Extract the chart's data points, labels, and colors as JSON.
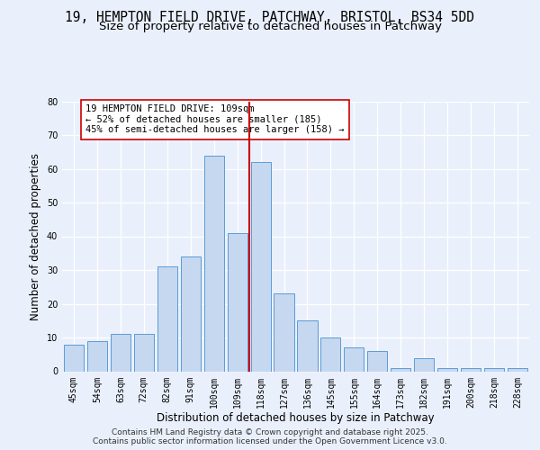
{
  "title_line1": "19, HEMPTON FIELD DRIVE, PATCHWAY, BRISTOL, BS34 5DD",
  "title_line2": "Size of property relative to detached houses in Patchway",
  "xlabel": "Distribution of detached houses by size in Patchway",
  "ylabel": "Number of detached properties",
  "categories": [
    "45sqm",
    "54sqm",
    "63sqm",
    "72sqm",
    "82sqm",
    "91sqm",
    "100sqm",
    "109sqm",
    "118sqm",
    "127sqm",
    "136sqm",
    "145sqm",
    "155sqm",
    "164sqm",
    "173sqm",
    "182sqm",
    "191sqm",
    "200sqm",
    "218sqm",
    "228sqm"
  ],
  "values": [
    8,
    9,
    11,
    11,
    31,
    34,
    64,
    41,
    62,
    23,
    15,
    10,
    7,
    6,
    1,
    4,
    1,
    1,
    1,
    1
  ],
  "bar_color": "#c5d8f0",
  "bar_edge_color": "#5b9bd5",
  "vline_color": "#cc0000",
  "vline_pos": 7.5,
  "annotation_text": "19 HEMPTON FIELD DRIVE: 109sqm\n← 52% of detached houses are smaller (185)\n45% of semi-detached houses are larger (158) →",
  "annotation_box_color": "#ffffff",
  "annotation_box_edge": "#cc0000",
  "ylim": [
    0,
    80
  ],
  "yticks": [
    0,
    10,
    20,
    30,
    40,
    50,
    60,
    70,
    80
  ],
  "background_color": "#eaf0fb",
  "plot_bg_color": "#eaf0fb",
  "footer_text": "Contains HM Land Registry data © Crown copyright and database right 2025.\nContains public sector information licensed under the Open Government Licence v3.0.",
  "title_fontsize": 10.5,
  "subtitle_fontsize": 9.5,
  "xlabel_fontsize": 8.5,
  "ylabel_fontsize": 8.5,
  "tick_fontsize": 7,
  "annotation_fontsize": 7.5,
  "footer_fontsize": 6.5
}
